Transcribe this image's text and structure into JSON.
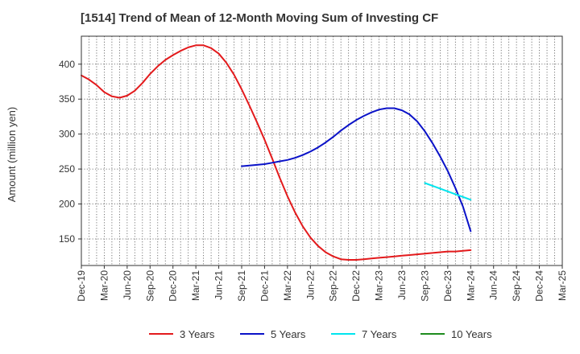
{
  "chart_data": {
    "type": "line",
    "title": "[1514]  Trend of Mean of 12-Month Moving Sum of Investing CF",
    "xlabel": "",
    "ylabel": "Amount (million yen)",
    "ylim": [
      112,
      440
    ],
    "yticks": [
      150,
      200,
      250,
      300,
      350,
      400
    ],
    "x_tick_labels": [
      "Dec-19",
      "Mar-20",
      "Jun-20",
      "Sep-20",
      "Dec-20",
      "Mar-21",
      "Jun-21",
      "Sep-21",
      "Dec-21",
      "Mar-22",
      "Jun-22",
      "Sep-22",
      "Dec-22",
      "Mar-23",
      "Jun-23",
      "Sep-23",
      "Dec-23",
      "Mar-24",
      "Jun-24",
      "Sep-24",
      "Dec-24",
      "Mar-25"
    ],
    "grid": true,
    "legend_position": "bottom",
    "series": [
      {
        "name": "3 Years",
        "color": "#e31a1c",
        "x": [
          "Dec-19",
          "Jan-20",
          "Feb-20",
          "Mar-20",
          "Apr-20",
          "May-20",
          "Jun-20",
          "Jul-20",
          "Aug-20",
          "Sep-20",
          "Oct-20",
          "Nov-20",
          "Dec-20",
          "Jan-21",
          "Feb-21",
          "Mar-21",
          "Apr-21",
          "May-21",
          "Jun-21",
          "Jul-21",
          "Aug-21",
          "Sep-21",
          "Oct-21",
          "Nov-21",
          "Dec-21",
          "Jan-22",
          "Feb-22",
          "Mar-22",
          "Apr-22",
          "May-22",
          "Jun-22",
          "Jul-22",
          "Aug-22",
          "Sep-22",
          "Oct-22",
          "Nov-22",
          "Dec-22",
          "Jan-23",
          "Feb-23",
          "Mar-23",
          "Apr-23",
          "May-23",
          "Jun-23",
          "Jul-23",
          "Aug-23",
          "Sep-23",
          "Oct-23",
          "Nov-23",
          "Dec-23",
          "Jan-24",
          "Feb-24",
          "Mar-24"
        ],
        "values": [
          384,
          378,
          370,
          360,
          354,
          352,
          355,
          362,
          373,
          386,
          397,
          406,
          413,
          419,
          424,
          427,
          427,
          423,
          415,
          402,
          385,
          364,
          341,
          317,
          292,
          265,
          237,
          211,
          188,
          168,
          152,
          140,
          131,
          125,
          121,
          120,
          120,
          121,
          122,
          123,
          124,
          125,
          126,
          127,
          128,
          129,
          130,
          131,
          132,
          132,
          133,
          134
        ]
      },
      {
        "name": "5 Years",
        "color": "#0a12c8",
        "x": [
          "Sep-21",
          "Oct-21",
          "Nov-21",
          "Dec-21",
          "Jan-22",
          "Feb-22",
          "Mar-22",
          "Apr-22",
          "May-22",
          "Jun-22",
          "Jul-22",
          "Aug-22",
          "Sep-22",
          "Oct-22",
          "Nov-22",
          "Dec-22",
          "Jan-23",
          "Feb-23",
          "Mar-23",
          "Apr-23",
          "May-23",
          "Jun-23",
          "Jul-23",
          "Aug-23",
          "Sep-23",
          "Oct-23",
          "Nov-23",
          "Dec-23",
          "Jan-24",
          "Feb-24",
          "Mar-24"
        ],
        "values": [
          254,
          255,
          256,
          257,
          259,
          261,
          263,
          266,
          270,
          275,
          281,
          288,
          296,
          305,
          313,
          320,
          326,
          331,
          335,
          337,
          337,
          334,
          328,
          318,
          304,
          287,
          268,
          247,
          223,
          196,
          161
        ]
      },
      {
        "name": "7 Years",
        "color": "#00e5ee",
        "x": [
          "Sep-23",
          "Oct-23",
          "Nov-23",
          "Dec-23",
          "Jan-24",
          "Feb-24",
          "Mar-24"
        ],
        "values": [
          230,
          226,
          222,
          218,
          214,
          210,
          206
        ]
      },
      {
        "name": "10 Years",
        "color": "#1e8c1e",
        "x": [],
        "values": []
      }
    ]
  }
}
